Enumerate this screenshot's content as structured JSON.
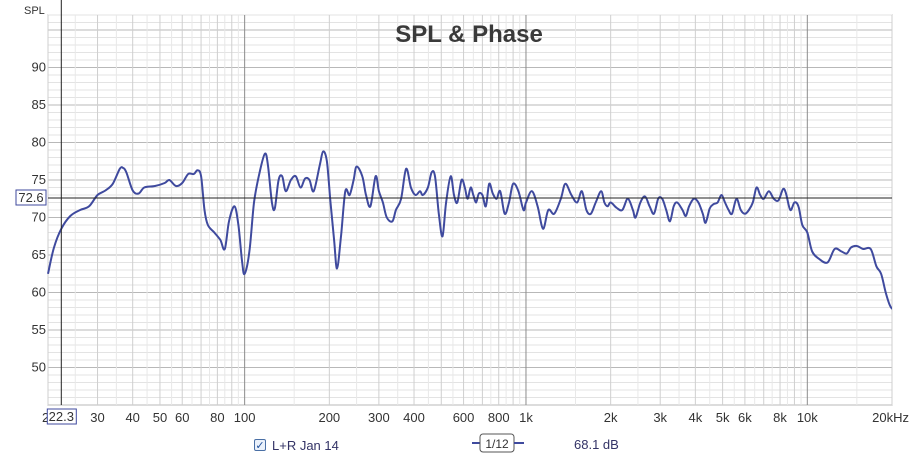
{
  "chart_data": {
    "type": "line",
    "title": "SPL & Phase",
    "ylabel": "SPL",
    "xlabel": "",
    "xscale": "log",
    "xlim": [
      20,
      20000
    ],
    "ylim": [
      45,
      97
    ],
    "grid": true,
    "yticks": [
      50,
      55,
      60,
      65,
      70,
      75,
      80,
      85,
      90
    ],
    "xticks": [
      {
        "v": 30,
        "label": "30"
      },
      {
        "v": 40,
        "label": "40"
      },
      {
        "v": 50,
        "label": "50"
      },
      {
        "v": 60,
        "label": "60"
      },
      {
        "v": 80,
        "label": "80"
      },
      {
        "v": 100,
        "label": "100"
      },
      {
        "v": 200,
        "label": "200"
      },
      {
        "v": 300,
        "label": "300"
      },
      {
        "v": 400,
        "label": "400"
      },
      {
        "v": 600,
        "label": "600"
      },
      {
        "v": 800,
        "label": "800"
      },
      {
        "v": 1000,
        "label": "1k"
      },
      {
        "v": 2000,
        "label": "2k"
      },
      {
        "v": 3000,
        "label": "3k"
      },
      {
        "v": 4000,
        "label": "4k"
      },
      {
        "v": 5000,
        "label": "5k"
      },
      {
        "v": 6000,
        "label": "6k"
      },
      {
        "v": 8000,
        "label": "8k"
      },
      {
        "v": 10000,
        "label": "10k"
      },
      {
        "v": 20000,
        "label": "20kHz"
      }
    ],
    "x_left_label": "2",
    "cursor": {
      "x": 22.3,
      "y": 72.6,
      "x_label": "22.3",
      "y_label": "72.6"
    },
    "series": [
      {
        "name": "L+R Jan 14",
        "color": "#3f4a9e",
        "points": [
          [
            20,
            62.5
          ],
          [
            21,
            66
          ],
          [
            22.3,
            68.5
          ],
          [
            24,
            70.2
          ],
          [
            26,
            71
          ],
          [
            28,
            71.5
          ],
          [
            30,
            73
          ],
          [
            32,
            73.6
          ],
          [
            34,
            74.5
          ],
          [
            36,
            76.5
          ],
          [
            37,
            76.6
          ],
          [
            38,
            76
          ],
          [
            40,
            73.6
          ],
          [
            42,
            73.2
          ],
          [
            44,
            74
          ],
          [
            48,
            74.2
          ],
          [
            52,
            74.6
          ],
          [
            54,
            75
          ],
          [
            57,
            74.2
          ],
          [
            60,
            74.6
          ],
          [
            63,
            75.8
          ],
          [
            66,
            75.8
          ],
          [
            68,
            76.3
          ],
          [
            70,
            75.5
          ],
          [
            72,
            71
          ],
          [
            74,
            69
          ],
          [
            78,
            68
          ],
          [
            82,
            67
          ],
          [
            85,
            65.8
          ],
          [
            88,
            69.5
          ],
          [
            92,
            71.5
          ],
          [
            95,
            69
          ],
          [
            98,
            64
          ],
          [
            100,
            62.5
          ],
          [
            104,
            65.5
          ],
          [
            108,
            72
          ],
          [
            113,
            76
          ],
          [
            118,
            78.5
          ],
          [
            121,
            77
          ],
          [
            125,
            72
          ],
          [
            128,
            71.2
          ],
          [
            132,
            75
          ],
          [
            136,
            75.5
          ],
          [
            140,
            73.5
          ],
          [
            146,
            75
          ],
          [
            152,
            75.5
          ],
          [
            158,
            74
          ],
          [
            164,
            75.2
          ],
          [
            170,
            75
          ],
          [
            176,
            73.5
          ],
          [
            185,
            77
          ],
          [
            190,
            78.8
          ],
          [
            196,
            77.5
          ],
          [
            202,
            72
          ],
          [
            208,
            67
          ],
          [
            213,
            63.2
          ],
          [
            220,
            67.5
          ],
          [
            228,
            73.5
          ],
          [
            236,
            73
          ],
          [
            244,
            75
          ],
          [
            250,
            76.8
          ],
          [
            262,
            75.5
          ],
          [
            270,
            73
          ],
          [
            280,
            71.5
          ],
          [
            292,
            75.5
          ],
          [
            300,
            73.5
          ],
          [
            310,
            72
          ],
          [
            320,
            70
          ],
          [
            335,
            69.5
          ],
          [
            345,
            71
          ],
          [
            360,
            72.5
          ],
          [
            375,
            76.5
          ],
          [
            390,
            74
          ],
          [
            405,
            73
          ],
          [
            420,
            73.5
          ],
          [
            430,
            73
          ],
          [
            448,
            74
          ],
          [
            462,
            76
          ],
          [
            475,
            75.5
          ],
          [
            490,
            70.5
          ],
          [
            505,
            67.5
          ],
          [
            520,
            72
          ],
          [
            540,
            75.5
          ],
          [
            555,
            73
          ],
          [
            570,
            72
          ],
          [
            590,
            75
          ],
          [
            606,
            74
          ],
          [
            620,
            72.5
          ],
          [
            636,
            74
          ],
          [
            650,
            73
          ],
          [
            665,
            72
          ],
          [
            680,
            73.2
          ],
          [
            700,
            73
          ],
          [
            720,
            71.5
          ],
          [
            740,
            74.5
          ],
          [
            762,
            73.2
          ],
          [
            786,
            72.5
          ],
          [
            810,
            73.5
          ],
          [
            840,
            70.5
          ],
          [
            870,
            72
          ],
          [
            900,
            74.5
          ],
          [
            940,
            73.5
          ],
          [
            980,
            71
          ],
          [
            1000,
            72
          ],
          [
            1050,
            73.5
          ],
          [
            1100,
            71.5
          ],
          [
            1150,
            68.5
          ],
          [
            1200,
            71
          ],
          [
            1260,
            70.5
          ],
          [
            1330,
            72.5
          ],
          [
            1380,
            74.5
          ],
          [
            1450,
            73
          ],
          [
            1520,
            72
          ],
          [
            1580,
            73.5
          ],
          [
            1640,
            71
          ],
          [
            1700,
            70.5
          ],
          [
            1770,
            72
          ],
          [
            1850,
            73.5
          ],
          [
            1900,
            72
          ],
          [
            1950,
            71.5
          ],
          [
            2000,
            72
          ],
          [
            2100,
            71.3
          ],
          [
            2200,
            71
          ],
          [
            2300,
            72.5
          ],
          [
            2400,
            71
          ],
          [
            2450,
            70
          ],
          [
            2550,
            72
          ],
          [
            2650,
            72.8
          ],
          [
            2750,
            71.5
          ],
          [
            2850,
            70.5
          ],
          [
            2950,
            72.5
          ],
          [
            3050,
            72.5
          ],
          [
            3150,
            71
          ],
          [
            3250,
            69.5
          ],
          [
            3350,
            71.5
          ],
          [
            3450,
            72
          ],
          [
            3600,
            71
          ],
          [
            3700,
            70.2
          ],
          [
            3800,
            71.5
          ],
          [
            3950,
            72.5
          ],
          [
            4100,
            72
          ],
          [
            4250,
            70.5
          ],
          [
            4350,
            69.3
          ],
          [
            4500,
            71.2
          ],
          [
            4650,
            71.8
          ],
          [
            4800,
            72
          ],
          [
            4950,
            73
          ],
          [
            5100,
            72
          ],
          [
            5250,
            71
          ],
          [
            5400,
            70.5
          ],
          [
            5600,
            72.5
          ],
          [
            5800,
            71
          ],
          [
            6000,
            70.5
          ],
          [
            6200,
            71
          ],
          [
            6400,
            72
          ],
          [
            6600,
            74
          ],
          [
            6800,
            73
          ],
          [
            7000,
            72.5
          ],
          [
            7300,
            73.5
          ],
          [
            7600,
            72.5
          ],
          [
            7900,
            72.3
          ],
          [
            8200,
            73.8
          ],
          [
            8400,
            73.2
          ],
          [
            8700,
            71
          ],
          [
            9000,
            72
          ],
          [
            9300,
            71.5
          ],
          [
            9600,
            69
          ],
          [
            10000,
            68
          ],
          [
            10400,
            65.5
          ],
          [
            11000,
            64.5
          ],
          [
            11800,
            64
          ],
          [
            12500,
            65.8
          ],
          [
            13200,
            65.5
          ],
          [
            13800,
            65.2
          ],
          [
            14300,
            66
          ],
          [
            15000,
            66.2
          ],
          [
            15800,
            65.8
          ],
          [
            16800,
            65.8
          ],
          [
            17600,
            63.5
          ],
          [
            18300,
            62.5
          ],
          [
            19000,
            60
          ],
          [
            19700,
            58.2
          ],
          [
            20300,
            57.8
          ],
          [
            21000,
            58.5
          ],
          [
            22000,
            61
          ]
        ]
      }
    ]
  },
  "legend": {
    "series_label": "L+R Jan 14",
    "checked": true,
    "smoothing_label": "1/12",
    "spl_readout": "68.1 dB"
  }
}
